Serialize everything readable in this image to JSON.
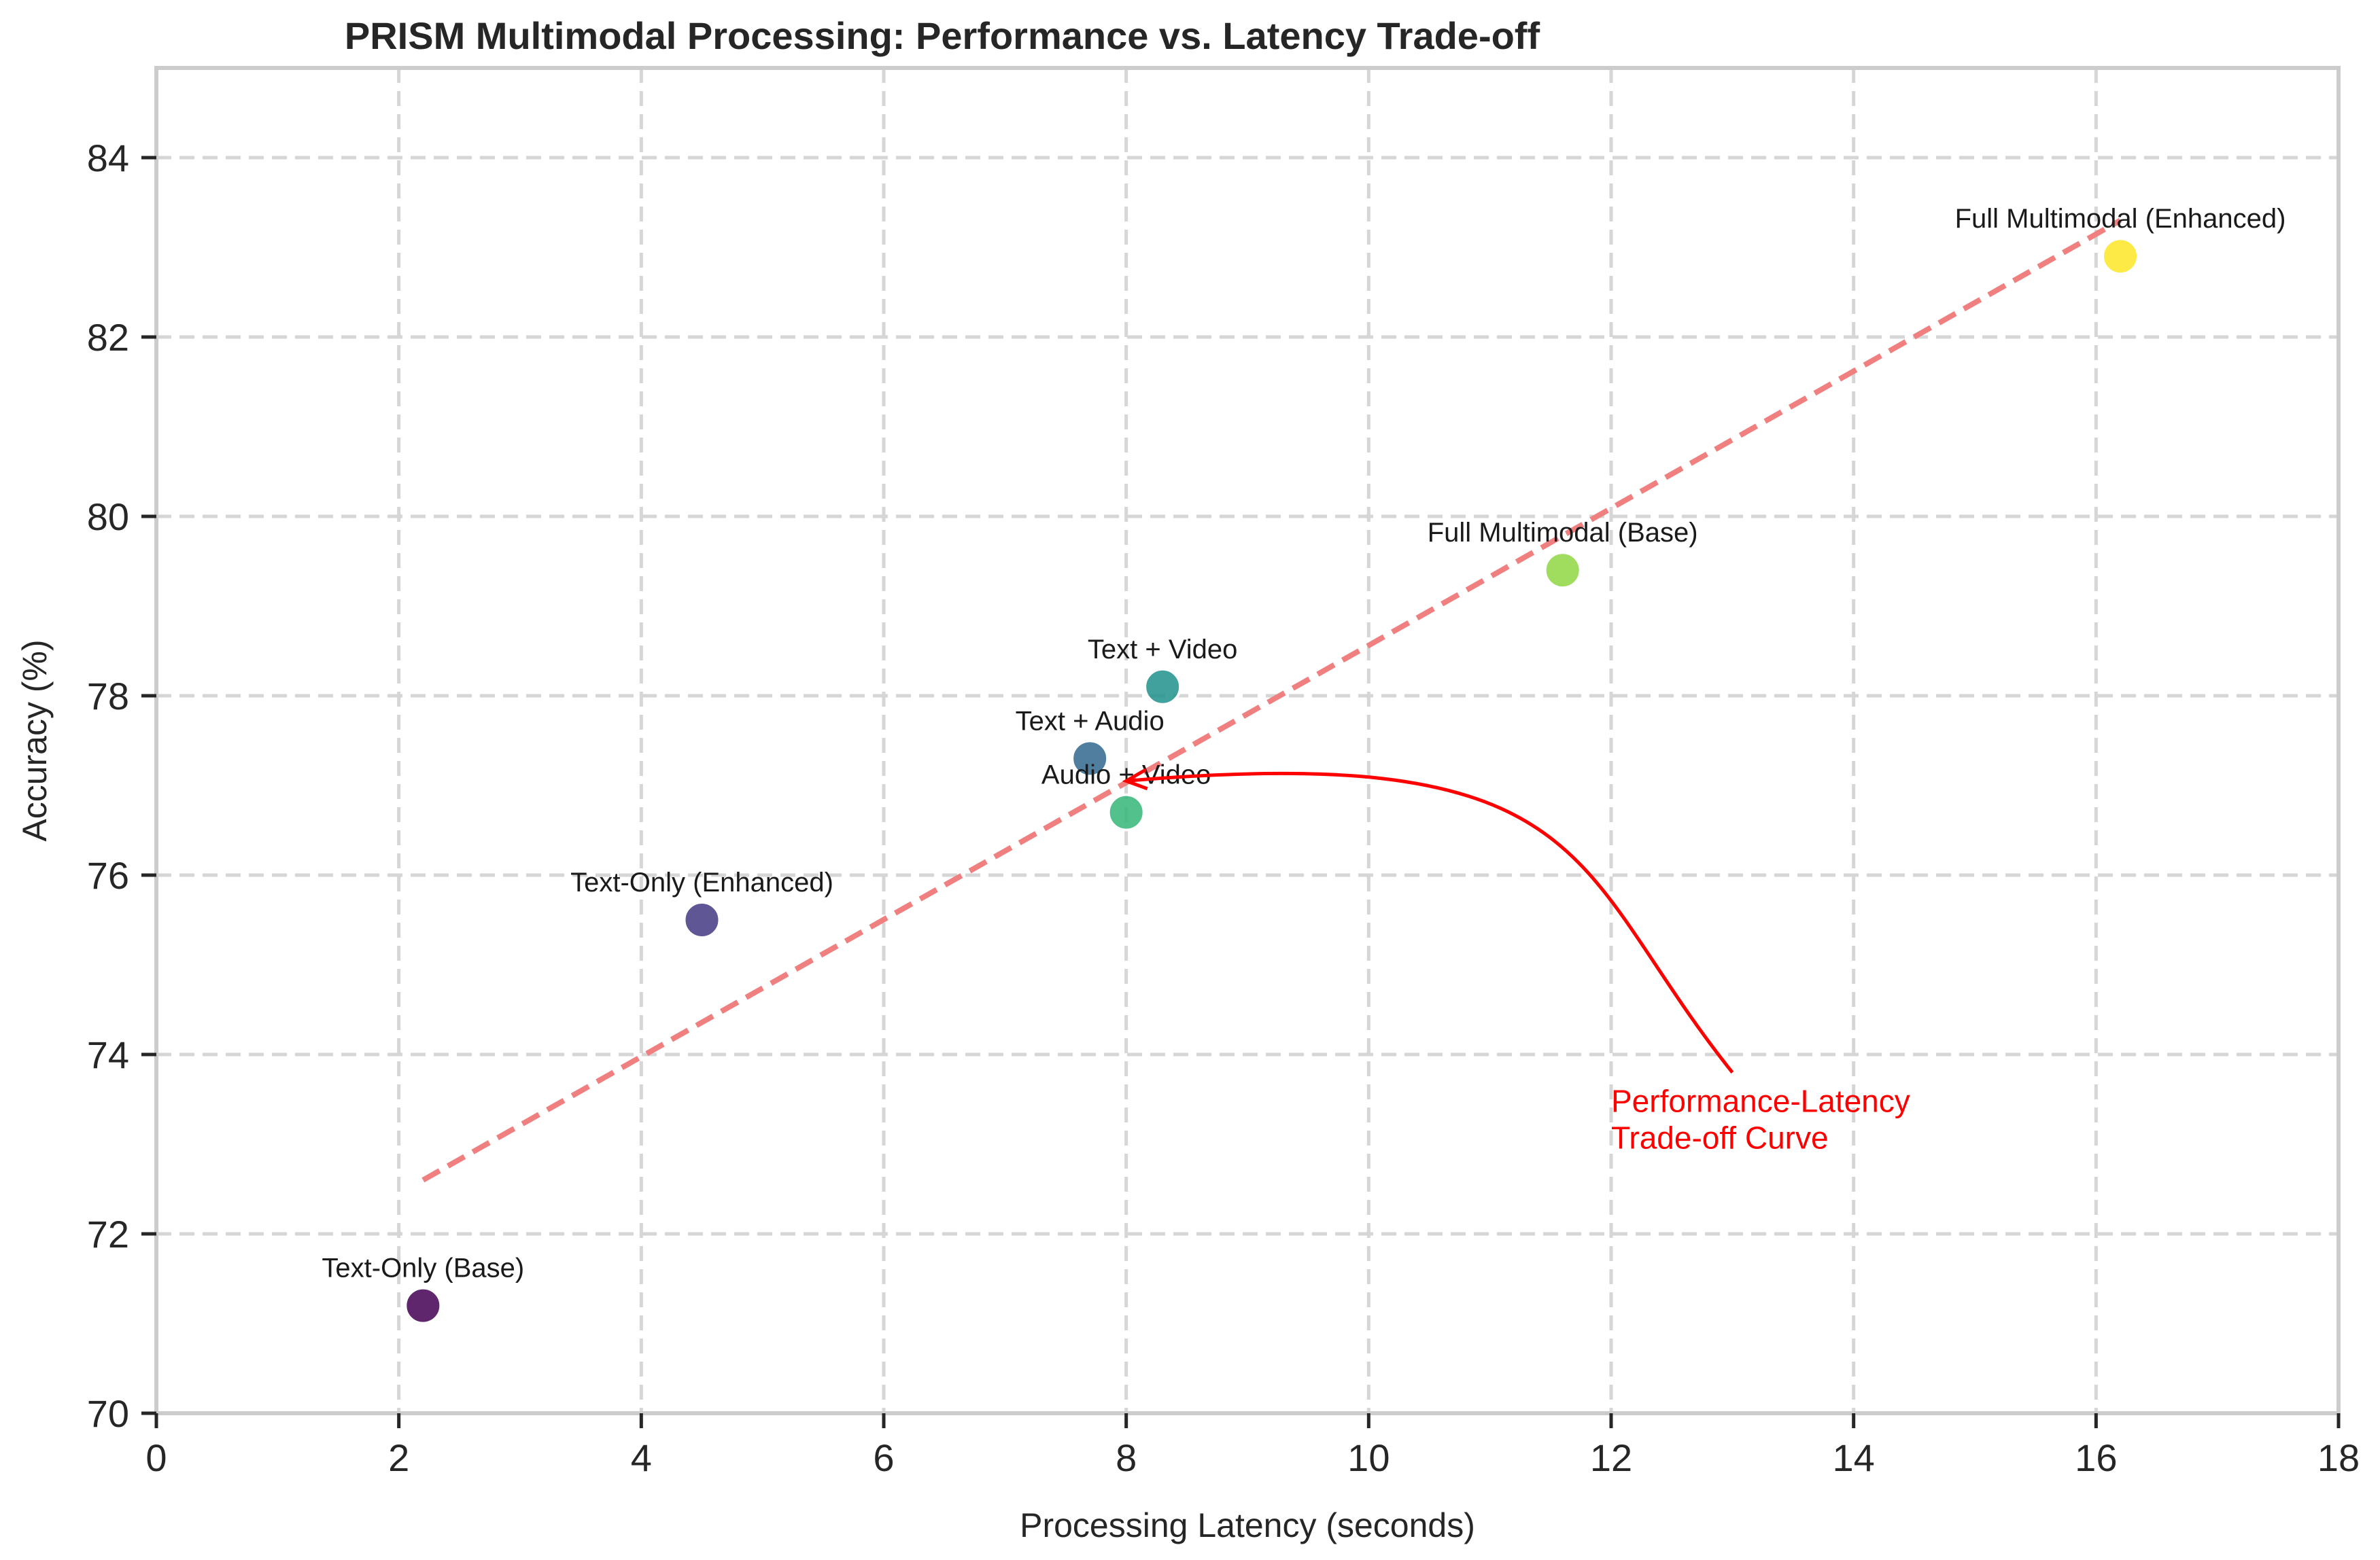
{
  "chart_data": {
    "type": "scatter",
    "title": "PRISM Multimodal Processing: Performance vs. Latency Trade-off",
    "xlabel": "Processing Latency (seconds)",
    "ylabel": "Accuracy (%)",
    "xlim": [
      0,
      18
    ],
    "ylim": [
      70,
      85
    ],
    "xticks": [
      0,
      2,
      4,
      6,
      8,
      10,
      12,
      14,
      16,
      18
    ],
    "yticks": [
      70,
      72,
      74,
      76,
      78,
      80,
      82,
      84
    ],
    "grid": true,
    "points": [
      {
        "label": "Text-Only (Base)",
        "x": 2.2,
        "y": 71.2,
        "color": "#440154"
      },
      {
        "label": "Text-Only (Enhanced)",
        "x": 4.5,
        "y": 75.5,
        "color": "#443983"
      },
      {
        "label": "Text + Audio",
        "x": 7.7,
        "y": 77.3,
        "color": "#31688e"
      },
      {
        "label": "Text + Video",
        "x": 8.3,
        "y": 78.1,
        "color": "#21918c"
      },
      {
        "label": "Audio + Video",
        "x": 8.0,
        "y": 76.7,
        "color": "#35b779"
      },
      {
        "label": "Full Multimodal (Base)",
        "x": 11.6,
        "y": 79.4,
        "color": "#90d743"
      },
      {
        "label": "Full Multimodal (Enhanced)",
        "x": 16.2,
        "y": 82.9,
        "color": "#fde725"
      }
    ],
    "trend_line": {
      "x": [
        2.2,
        16.2
      ],
      "y": [
        72.6,
        83.3
      ],
      "color": "#f08080",
      "style": "dashed"
    },
    "annotation": {
      "text_lines": [
        "Performance-Latency",
        "Trade-off Curve"
      ],
      "text_x": 12.0,
      "text_y": 72.95,
      "arrow_from_x": 13.0,
      "arrow_from_y": 73.8,
      "arrow_to_x": 8.0,
      "arrow_to_y": 77.05,
      "color": "#ff0000"
    }
  }
}
